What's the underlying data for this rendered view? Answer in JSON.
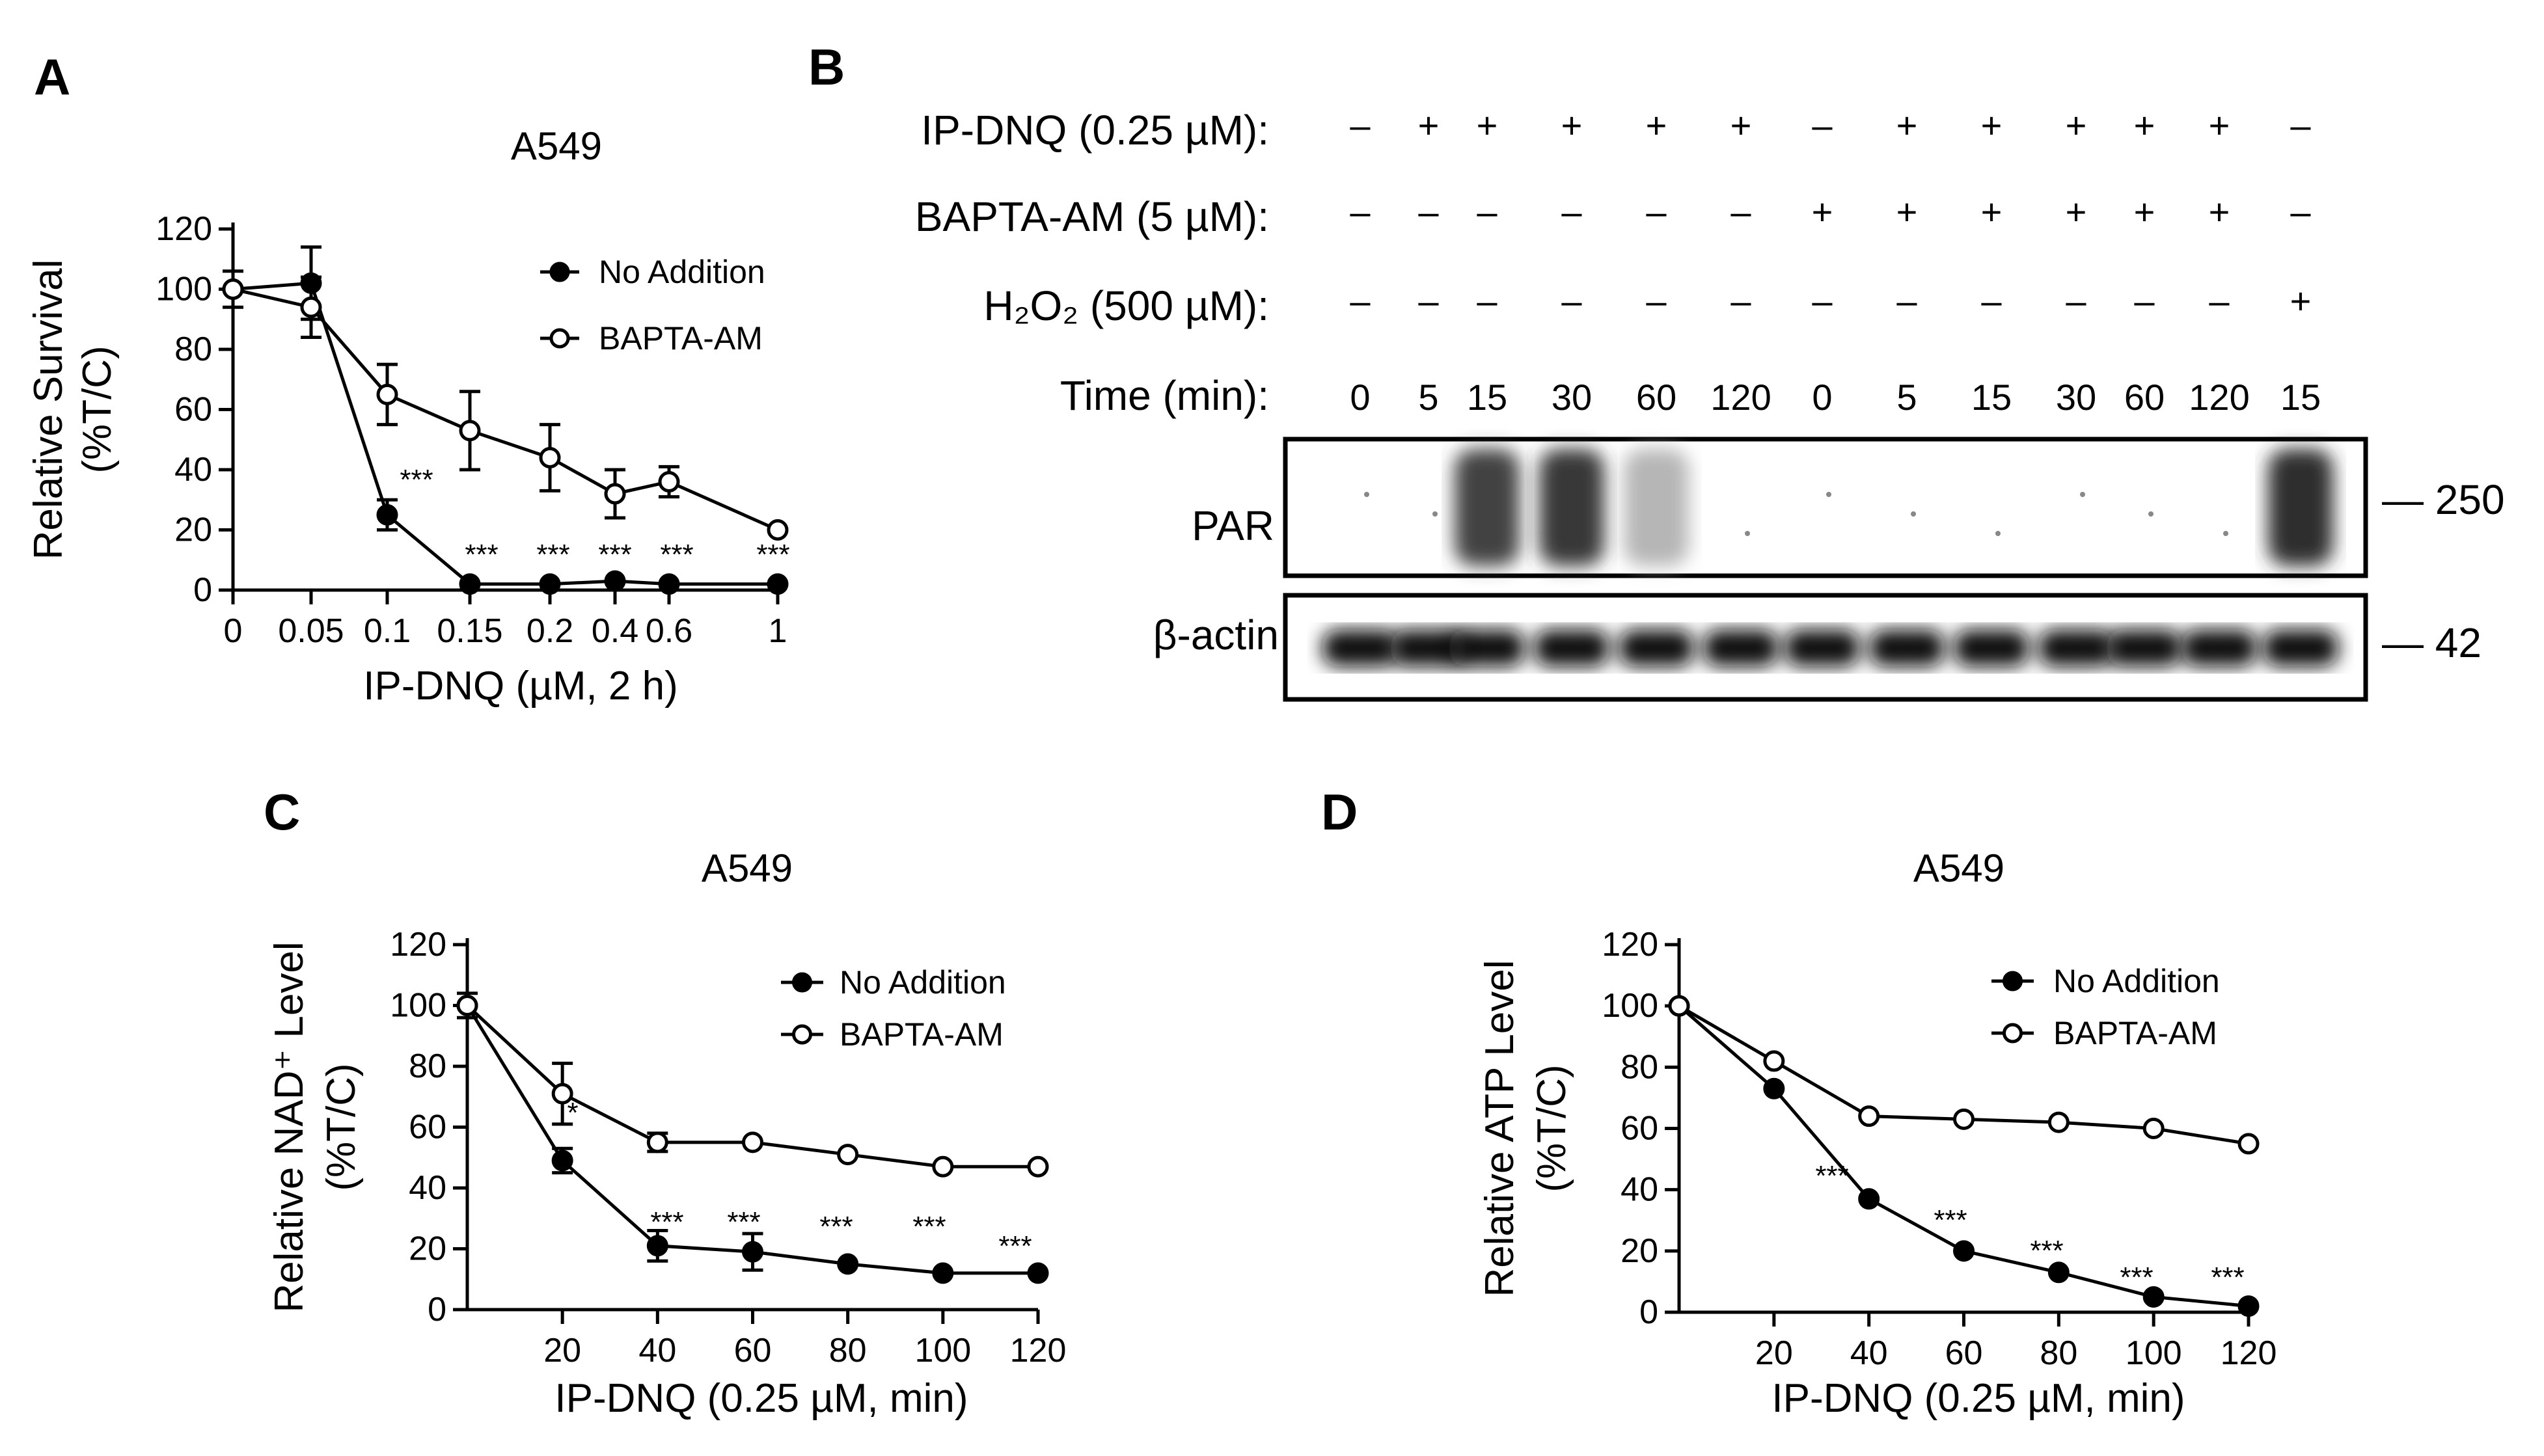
{
  "panels": {
    "A": "A",
    "B": "B",
    "C": "C",
    "D": "D"
  },
  "blot": {
    "rows": [
      {
        "label": "IP-DNQ (0.25 µM):",
        "values": [
          "–",
          "+",
          "+",
          "+",
          "+",
          "+",
          "–",
          "+",
          "+",
          "+",
          "+",
          "+",
          "–"
        ]
      },
      {
        "label": "BAPTA-AM (5 µM):",
        "values": [
          "–",
          "–",
          "–",
          "–",
          "–",
          "–",
          "+",
          "+",
          "+",
          "+",
          "+",
          "+",
          "–"
        ]
      },
      {
        "label": "H₂O₂ (500 µM):",
        "values": [
          "–",
          "–",
          "–",
          "–",
          "–",
          "–",
          "–",
          "–",
          "–",
          "–",
          "–",
          "–",
          "+"
        ]
      },
      {
        "label": "Time (min):",
        "values": [
          "0",
          "5",
          "15",
          "30",
          "60",
          "120",
          "0",
          "5",
          "15",
          "30",
          "60",
          "120",
          "15"
        ]
      }
    ],
    "par_label": "PAR",
    "actin_label": "β-actin",
    "par_marker": "— 250",
    "actin_marker": "— 42",
    "par_intensity": [
      0.05,
      0.05,
      0.9,
      0.95,
      0.35,
      0.05,
      0.05,
      0.05,
      0.05,
      0.05,
      0.05,
      0.05,
      1.0
    ]
  },
  "chart_data": [
    {
      "panel": "A",
      "type": "line",
      "title": "A549",
      "xlabel": "IP-DNQ (µM, 2 h)",
      "ylabel": "Relative Survival",
      "ylabel2": "(%T/C)",
      "x_tick_labels": [
        "0",
        "0.05",
        "0.1",
        "0.15",
        "0.2",
        "0.4",
        "0.6",
        "1"
      ],
      "y_ticks": [
        "0",
        "20",
        "40",
        "60",
        "80",
        "100",
        "120"
      ],
      "ylim": [
        0,
        120
      ],
      "legend_position": "top-right",
      "series": [
        {
          "name": "No Addition",
          "marker": "filled-circle",
          "values": [
            100,
            102,
            25,
            2,
            2,
            3,
            2,
            2
          ],
          "errors": [
            6,
            12,
            5,
            0,
            0,
            0,
            0,
            0
          ]
        },
        {
          "name": "BAPTA-AM",
          "marker": "open-circle",
          "values": [
            100,
            94,
            65,
            53,
            44,
            32,
            36,
            20
          ],
          "errors": [
            0,
            10,
            10,
            13,
            11,
            8,
            5,
            0
          ]
        }
      ],
      "annotations": [
        "***",
        "***",
        "***",
        "***",
        "***",
        "***"
      ]
    },
    {
      "panel": "C",
      "type": "line",
      "title": "A549",
      "xlabel": "IP-DNQ (0.25 µM, min)",
      "ylabel": "Relative NAD⁺ Level",
      "ylabel2": "(%T/C)",
      "x": [
        0,
        20,
        40,
        60,
        80,
        100,
        120
      ],
      "x_tick_labels": [
        "20",
        "40",
        "60",
        "80",
        "100",
        "120"
      ],
      "y_ticks": [
        "0",
        "20",
        "40",
        "60",
        "80",
        "100",
        "120"
      ],
      "xlim": [
        0,
        120
      ],
      "ylim": [
        0,
        120
      ],
      "legend_position": "top-right",
      "series": [
        {
          "name": "No Addition",
          "marker": "filled-circle",
          "values": [
            100,
            49,
            21,
            19,
            15,
            12,
            12
          ],
          "errors": [
            4,
            4,
            5,
            6,
            0,
            0,
            0
          ]
        },
        {
          "name": "BAPTA-AM",
          "marker": "open-circle",
          "values": [
            100,
            71,
            55,
            55,
            51,
            47,
            47
          ],
          "errors": [
            0,
            10,
            3,
            0,
            0,
            0,
            0
          ]
        }
      ],
      "annotations": [
        "*",
        "***",
        "***",
        "***",
        "***",
        "***"
      ]
    },
    {
      "panel": "D",
      "type": "line",
      "title": "A549",
      "xlabel": "IP-DNQ (0.25 µM, min)",
      "ylabel": "Relative ATP Level",
      "ylabel2": "(%T/C)",
      "x": [
        0,
        20,
        40,
        60,
        80,
        100,
        120
      ],
      "x_tick_labels": [
        "20",
        "40",
        "60",
        "80",
        "100",
        "120"
      ],
      "y_ticks": [
        "0",
        "20",
        "40",
        "60",
        "80",
        "100",
        "120"
      ],
      "xlim": [
        0,
        120
      ],
      "ylim": [
        0,
        120
      ],
      "legend_position": "top-right",
      "series": [
        {
          "name": "No Addition",
          "marker": "filled-circle",
          "values": [
            100,
            73,
            37,
            20,
            13,
            5,
            2
          ],
          "errors": [
            0,
            0,
            0,
            0,
            0,
            0,
            0
          ]
        },
        {
          "name": "BAPTA-AM",
          "marker": "open-circle",
          "values": [
            100,
            82,
            64,
            63,
            62,
            60,
            55
          ],
          "errors": [
            0,
            0,
            0,
            0,
            0,
            0,
            0
          ]
        }
      ],
      "annotations": [
        "***",
        "***",
        "***",
        "***",
        "***"
      ]
    }
  ]
}
